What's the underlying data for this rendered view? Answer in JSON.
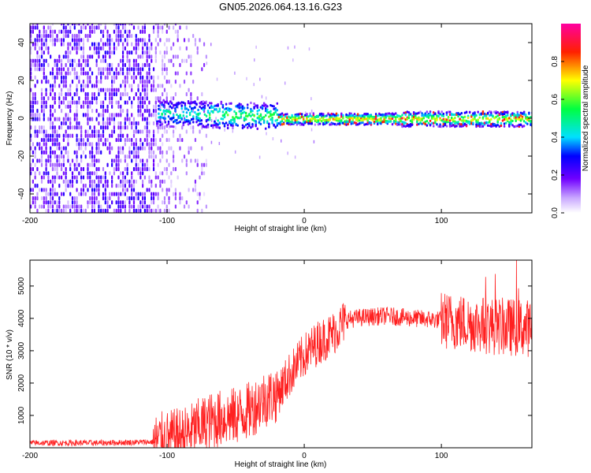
{
  "title": "GN05.2026.064.13.16.G23",
  "chart_data": [
    {
      "type": "heatmap",
      "xlabel": "Height of straight line (km)",
      "ylabel": "Frequency (Hz)",
      "xlim": [
        -200,
        166
      ],
      "ylim": [
        -50,
        50
      ],
      "xticks": [
        -200,
        -100,
        0,
        100
      ],
      "xtick_labels": [
        "-200",
        "-100",
        "0",
        "100"
      ],
      "yticks": [
        -40,
        -20,
        0,
        20,
        40
      ],
      "ytick_labels": [
        "-40",
        "-20",
        "0",
        "20",
        "40"
      ],
      "colorbar": {
        "label": "Normalized spectral amplitude",
        "range": [
          0,
          1
        ],
        "ticks": [
          0.0,
          0.2,
          0.4,
          0.6,
          0.8
        ],
        "tick_labels": [
          "0.0",
          "0.2",
          "0.4",
          "0.6",
          "0.8"
        ]
      },
      "features": [
        {
          "name": "broadband noise",
          "x_range": [
            -200,
            -75
          ],
          "amplitude": 0.2
        },
        {
          "name": "emerging signal line",
          "x_range": [
            -105,
            -20
          ],
          "frequency_hz": 0,
          "amplitude": 0.3
        },
        {
          "name": "strong carrier line",
          "x_range": [
            -20,
            166
          ],
          "frequency_hz": -1,
          "amplitude": 0.85
        }
      ]
    },
    {
      "type": "line",
      "xlabel": "Height of straight line (km)",
      "ylabel": "SNR (10 * v/v)",
      "xlim": [
        -200,
        166
      ],
      "ylim": [
        0,
        5800
      ],
      "xticks": [
        -200,
        -100,
        0,
        100
      ],
      "xtick_labels": [
        "-200",
        "-100",
        "0",
        "100"
      ],
      "yticks": [
        1000,
        2000,
        3000,
        4000,
        5000
      ],
      "ytick_labels": [
        "1000",
        "2000",
        "3000",
        "4000",
        "5000"
      ],
      "series": [
        {
          "name": "SNR",
          "color": "#ff2020",
          "x": [
            -200,
            -150,
            -110,
            -100,
            -85,
            -80,
            -70,
            -60,
            -50,
            -40,
            -30,
            -20,
            -10,
            0,
            10,
            20,
            25,
            30,
            40,
            60,
            80,
            100,
            120,
            140,
            166
          ],
          "values": [
            150,
            150,
            180,
            260,
            420,
            580,
            800,
            920,
            980,
            1150,
            1500,
            1650,
            2300,
            2850,
            3250,
            3500,
            3700,
            3950,
            4020,
            4080,
            4000,
            3950,
            3850,
            3750,
            3700
          ]
        }
      ]
    }
  ]
}
